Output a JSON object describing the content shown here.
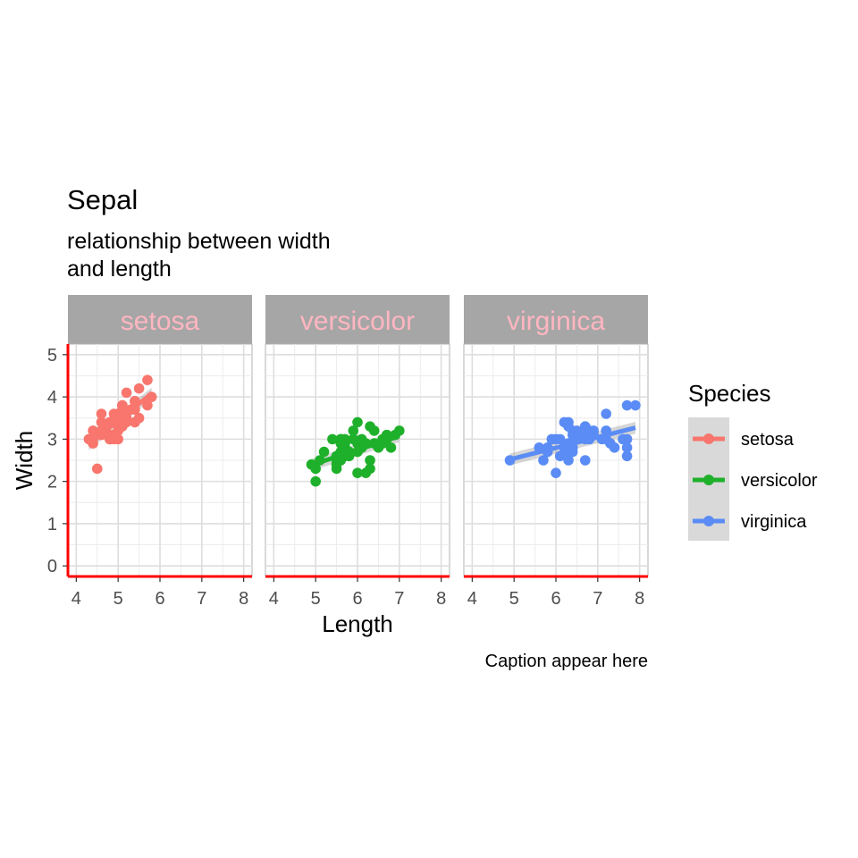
{
  "chart_data": {
    "type": "scatter",
    "title": "Sepal",
    "subtitle_lines": [
      "relationship between width",
      "and length"
    ],
    "caption": "Caption appear here",
    "xlabel": "Length",
    "ylabel": "Width",
    "xlim": [
      3.8,
      8.2
    ],
    "ylim": [
      -0.25,
      5.25
    ],
    "x_ticks": [
      "4",
      "5",
      "6",
      "7",
      "8"
    ],
    "y_ticks": [
      "0",
      "1",
      "2",
      "3",
      "4",
      "5"
    ],
    "grid": true,
    "strip_text_color": "#ffb6c1",
    "strip_fill": "#a6a6a6",
    "axis_line_color": "#ff0000",
    "legend": {
      "title": "Species",
      "position": "right"
    },
    "facets": [
      {
        "name": "setosa",
        "color": "#f8766d",
        "trend": {
          "x": [
            4.3,
            5.8
          ],
          "y": [
            2.88,
            4.08
          ]
        },
        "points": [
          [
            5.1,
            3.5
          ],
          [
            4.9,
            3.0
          ],
          [
            4.7,
            3.2
          ],
          [
            4.6,
            3.1
          ],
          [
            5.0,
            3.6
          ],
          [
            5.4,
            3.9
          ],
          [
            4.6,
            3.4
          ],
          [
            5.0,
            3.4
          ],
          [
            4.4,
            2.9
          ],
          [
            4.9,
            3.1
          ],
          [
            5.4,
            3.7
          ],
          [
            4.8,
            3.4
          ],
          [
            4.8,
            3.0
          ],
          [
            4.3,
            3.0
          ],
          [
            5.8,
            4.0
          ],
          [
            5.7,
            4.4
          ],
          [
            5.4,
            3.9
          ],
          [
            5.1,
            3.5
          ],
          [
            5.7,
            3.8
          ],
          [
            5.1,
            3.8
          ],
          [
            5.4,
            3.4
          ],
          [
            5.1,
            3.7
          ],
          [
            4.6,
            3.6
          ],
          [
            5.1,
            3.3
          ],
          [
            4.8,
            3.4
          ],
          [
            5.0,
            3.0
          ],
          [
            5.0,
            3.4
          ],
          [
            5.2,
            3.5
          ],
          [
            5.2,
            3.4
          ],
          [
            4.7,
            3.2
          ],
          [
            4.8,
            3.1
          ],
          [
            5.4,
            3.4
          ],
          [
            5.2,
            4.1
          ],
          [
            5.5,
            4.2
          ],
          [
            4.9,
            3.1
          ],
          [
            5.0,
            3.2
          ],
          [
            5.5,
            3.5
          ],
          [
            4.9,
            3.6
          ],
          [
            4.4,
            3.0
          ],
          [
            5.1,
            3.4
          ],
          [
            5.0,
            3.5
          ],
          [
            4.5,
            2.3
          ],
          [
            4.4,
            3.2
          ],
          [
            5.0,
            3.5
          ],
          [
            5.1,
            3.8
          ],
          [
            4.8,
            3.0
          ],
          [
            5.1,
            3.8
          ],
          [
            4.6,
            3.2
          ],
          [
            5.3,
            3.7
          ],
          [
            5.0,
            3.3
          ]
        ]
      },
      {
        "name": "versicolor",
        "color": "#1fb02b",
        "trend": {
          "x": [
            4.9,
            7.0
          ],
          "y": [
            2.39,
            3.07
          ]
        },
        "points": [
          [
            7.0,
            3.2
          ],
          [
            6.4,
            3.2
          ],
          [
            6.9,
            3.1
          ],
          [
            5.5,
            2.3
          ],
          [
            6.5,
            2.8
          ],
          [
            5.7,
            2.8
          ],
          [
            6.3,
            3.3
          ],
          [
            4.9,
            2.4
          ],
          [
            6.6,
            2.9
          ],
          [
            5.2,
            2.7
          ],
          [
            5.0,
            2.0
          ],
          [
            5.9,
            3.0
          ],
          [
            6.0,
            2.2
          ],
          [
            6.1,
            2.9
          ],
          [
            5.6,
            2.9
          ],
          [
            6.7,
            3.1
          ],
          [
            5.6,
            3.0
          ],
          [
            5.8,
            2.7
          ],
          [
            6.2,
            2.2
          ],
          [
            5.6,
            2.5
          ],
          [
            5.9,
            3.2
          ],
          [
            6.1,
            2.8
          ],
          [
            6.3,
            2.5
          ],
          [
            6.1,
            2.8
          ],
          [
            6.4,
            2.9
          ],
          [
            6.6,
            3.0
          ],
          [
            6.8,
            2.8
          ],
          [
            6.7,
            3.0
          ],
          [
            6.0,
            2.9
          ],
          [
            5.7,
            2.6
          ],
          [
            5.5,
            2.4
          ],
          [
            5.5,
            2.4
          ],
          [
            5.8,
            2.7
          ],
          [
            6.0,
            2.7
          ],
          [
            5.4,
            3.0
          ],
          [
            6.0,
            3.4
          ],
          [
            6.7,
            3.1
          ],
          [
            6.3,
            2.3
          ],
          [
            5.6,
            3.0
          ],
          [
            5.5,
            2.5
          ],
          [
            5.5,
            2.6
          ],
          [
            6.1,
            3.0
          ],
          [
            5.8,
            2.6
          ],
          [
            5.0,
            2.3
          ],
          [
            5.6,
            2.7
          ],
          [
            5.7,
            3.0
          ],
          [
            5.7,
            2.9
          ],
          [
            6.2,
            2.9
          ],
          [
            5.1,
            2.5
          ],
          [
            5.7,
            2.8
          ]
        ]
      },
      {
        "name": "virginica",
        "color": "#5b8cf5",
        "trend": {
          "x": [
            4.9,
            7.9
          ],
          "y": [
            2.52,
            3.27
          ]
        },
        "points": [
          [
            6.3,
            3.3
          ],
          [
            5.8,
            2.7
          ],
          [
            7.1,
            3.0
          ],
          [
            6.3,
            2.9
          ],
          [
            6.5,
            3.0
          ],
          [
            7.6,
            3.0
          ],
          [
            4.9,
            2.5
          ],
          [
            7.3,
            2.9
          ],
          [
            6.7,
            2.5
          ],
          [
            7.2,
            3.6
          ],
          [
            6.5,
            3.2
          ],
          [
            6.4,
            2.7
          ],
          [
            6.8,
            3.0
          ],
          [
            5.7,
            2.5
          ],
          [
            5.8,
            2.8
          ],
          [
            6.4,
            3.2
          ],
          [
            6.5,
            3.0
          ],
          [
            7.7,
            3.8
          ],
          [
            7.7,
            2.6
          ],
          [
            6.0,
            2.2
          ],
          [
            6.9,
            3.2
          ],
          [
            5.6,
            2.8
          ],
          [
            7.7,
            2.8
          ],
          [
            6.3,
            2.7
          ],
          [
            6.7,
            3.3
          ],
          [
            7.2,
            3.2
          ],
          [
            6.2,
            2.8
          ],
          [
            6.1,
            3.0
          ],
          [
            6.4,
            2.8
          ],
          [
            7.2,
            3.0
          ],
          [
            7.4,
            2.8
          ],
          [
            7.9,
            3.8
          ],
          [
            6.4,
            2.8
          ],
          [
            6.3,
            2.8
          ],
          [
            6.1,
            2.6
          ],
          [
            7.7,
            3.0
          ],
          [
            6.3,
            3.4
          ],
          [
            6.4,
            3.1
          ],
          [
            6.0,
            3.0
          ],
          [
            6.9,
            3.1
          ],
          [
            6.7,
            3.1
          ],
          [
            6.9,
            3.1
          ],
          [
            5.8,
            2.7
          ],
          [
            6.8,
            3.2
          ],
          [
            6.7,
            3.3
          ],
          [
            6.7,
            3.0
          ],
          [
            6.3,
            2.5
          ],
          [
            6.5,
            3.0
          ],
          [
            6.2,
            3.4
          ],
          [
            5.9,
            3.0
          ]
        ]
      }
    ]
  }
}
